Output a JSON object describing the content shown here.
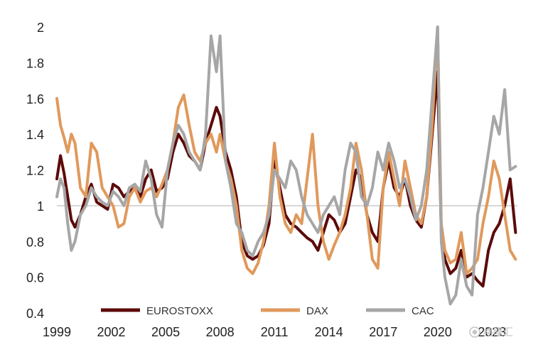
{
  "chart_data": {
    "type": "line",
    "title": "",
    "xlabel": "",
    "ylabel": "",
    "xlim": [
      1999,
      2024.4
    ],
    "ylim": [
      0.4,
      2.0
    ],
    "reference_line": 1.0,
    "x_ticks": [
      "1999",
      "2002",
      "2005",
      "2008",
      "2011",
      "2014",
      "2017",
      "2020",
      "2023"
    ],
    "y_ticks": [
      "0.4",
      "0.6",
      "0.8",
      "1",
      "1.2",
      "1.4",
      "1.6",
      "1.8",
      "2"
    ],
    "legend_position": "bottom",
    "series": [
      {
        "name": "EUROSTOXX",
        "color": "#5c0a0a",
        "x": [
          1999.0,
          1999.2,
          1999.4,
          1999.6,
          1999.8,
          2000.0,
          2000.3,
          2000.6,
          2000.9,
          2001.2,
          2001.5,
          2001.8,
          2002.1,
          2002.4,
          2002.7,
          2003.0,
          2003.3,
          2003.6,
          2003.9,
          2004.2,
          2004.5,
          2004.8,
          2005.1,
          2005.4,
          2005.7,
          2006.0,
          2006.3,
          2006.6,
          2006.9,
          2007.2,
          2007.5,
          2007.8,
          2008.0,
          2008.3,
          2008.6,
          2008.9,
          2009.2,
          2009.5,
          2009.8,
          2010.1,
          2010.4,
          2010.7,
          2011.0,
          2011.3,
          2011.6,
          2011.9,
          2012.2,
          2012.5,
          2012.8,
          2013.1,
          2013.4,
          2013.7,
          2014.0,
          2014.3,
          2014.6,
          2014.9,
          2015.2,
          2015.5,
          2015.8,
          2016.1,
          2016.4,
          2016.7,
          2017.0,
          2017.3,
          2017.6,
          2017.9,
          2018.2,
          2018.5,
          2018.8,
          2019.1,
          2019.4,
          2019.7,
          2020.0,
          2020.2,
          2020.4,
          2020.7,
          2021.0,
          2021.3,
          2021.6,
          2021.9,
          2022.2,
          2022.5,
          2022.8,
          2023.1,
          2023.4,
          2023.7,
          2024.0,
          2024.3
        ],
        "values": [
          1.15,
          1.28,
          1.18,
          1.05,
          0.92,
          0.88,
          0.95,
          1.05,
          1.12,
          1.02,
          1.0,
          0.98,
          1.12,
          1.1,
          1.05,
          1.08,
          1.1,
          1.05,
          1.15,
          1.2,
          1.08,
          1.1,
          1.15,
          1.3,
          1.4,
          1.35,
          1.28,
          1.25,
          1.2,
          1.35,
          1.45,
          1.55,
          1.5,
          1.3,
          1.2,
          1.05,
          0.8,
          0.72,
          0.7,
          0.72,
          0.78,
          0.9,
          1.25,
          1.1,
          0.95,
          0.9,
          0.88,
          0.85,
          0.82,
          0.8,
          0.75,
          0.85,
          0.95,
          0.92,
          0.85,
          0.9,
          1.05,
          1.2,
          1.15,
          0.95,
          0.85,
          0.8,
          1.1,
          1.25,
          1.1,
          1.05,
          1.15,
          1.0,
          0.92,
          0.88,
          1.05,
          1.4,
          1.75,
          0.85,
          0.7,
          0.62,
          0.65,
          0.75,
          0.6,
          0.62,
          0.58,
          0.55,
          0.75,
          0.85,
          0.9,
          1.0,
          1.15,
          0.85
        ]
      },
      {
        "name": "DAX",
        "color": "#e0995c",
        "x": [
          1999.0,
          1999.2,
          1999.4,
          1999.6,
          1999.8,
          2000.0,
          2000.3,
          2000.6,
          2000.9,
          2001.2,
          2001.5,
          2001.8,
          2002.1,
          2002.4,
          2002.7,
          2003.0,
          2003.3,
          2003.6,
          2003.9,
          2004.2,
          2004.5,
          2004.8,
          2005.1,
          2005.4,
          2005.7,
          2006.0,
          2006.3,
          2006.6,
          2006.9,
          2007.2,
          2007.5,
          2007.8,
          2008.0,
          2008.3,
          2008.6,
          2008.9,
          2009.2,
          2009.5,
          2009.8,
          2010.1,
          2010.4,
          2010.7,
          2011.0,
          2011.3,
          2011.6,
          2011.9,
          2012.2,
          2012.5,
          2012.8,
          2013.1,
          2013.4,
          2013.7,
          2014.0,
          2014.3,
          2014.6,
          2014.9,
          2015.2,
          2015.5,
          2015.8,
          2016.1,
          2016.4,
          2016.7,
          2017.0,
          2017.3,
          2017.6,
          2017.9,
          2018.2,
          2018.5,
          2018.8,
          2019.1,
          2019.4,
          2019.7,
          2020.0,
          2020.2,
          2020.4,
          2020.7,
          2021.0,
          2021.3,
          2021.6,
          2021.9,
          2022.2,
          2022.5,
          2022.8,
          2023.1,
          2023.4,
          2023.7,
          2024.0,
          2024.3
        ],
        "values": [
          1.6,
          1.45,
          1.38,
          1.3,
          1.4,
          1.35,
          1.1,
          1.05,
          1.35,
          1.3,
          1.1,
          1.05,
          1.0,
          0.88,
          0.9,
          1.05,
          1.1,
          1.02,
          1.08,
          1.1,
          1.05,
          1.12,
          1.2,
          1.35,
          1.55,
          1.62,
          1.45,
          1.3,
          1.25,
          1.35,
          1.4,
          1.3,
          1.4,
          1.25,
          1.15,
          1.0,
          0.75,
          0.65,
          0.62,
          0.68,
          0.8,
          1.0,
          1.35,
          1.05,
          0.9,
          0.85,
          0.95,
          0.9,
          1.15,
          1.4,
          1.0,
          0.8,
          0.7,
          0.78,
          0.85,
          0.95,
          1.1,
          1.35,
          1.2,
          0.95,
          0.7,
          0.65,
          1.1,
          1.3,
          1.15,
          1.0,
          1.25,
          1.1,
          0.95,
          0.9,
          1.05,
          1.45,
          2.0,
          0.9,
          0.75,
          0.68,
          0.7,
          0.85,
          0.62,
          0.65,
          0.7,
          0.9,
          1.05,
          1.25,
          1.15,
          0.95,
          0.75,
          0.7
        ]
      },
      {
        "name": "CAC",
        "color": "#a6a6a6",
        "x": [
          1999.0,
          1999.2,
          1999.4,
          1999.6,
          1999.8,
          2000.0,
          2000.3,
          2000.6,
          2000.9,
          2001.2,
          2001.5,
          2001.8,
          2002.1,
          2002.4,
          2002.7,
          2003.0,
          2003.3,
          2003.6,
          2003.9,
          2004.2,
          2004.5,
          2004.8,
          2005.1,
          2005.4,
          2005.7,
          2006.0,
          2006.3,
          2006.6,
          2006.9,
          2007.2,
          2007.5,
          2007.8,
          2008.0,
          2008.3,
          2008.6,
          2008.9,
          2009.2,
          2009.5,
          2009.8,
          2010.1,
          2010.4,
          2010.7,
          2011.0,
          2011.3,
          2011.6,
          2011.9,
          2012.2,
          2012.5,
          2012.8,
          2013.1,
          2013.4,
          2013.7,
          2014.0,
          2014.3,
          2014.6,
          2014.9,
          2015.2,
          2015.5,
          2015.8,
          2016.1,
          2016.4,
          2016.7,
          2017.0,
          2017.3,
          2017.6,
          2017.9,
          2018.2,
          2018.5,
          2018.8,
          2019.1,
          2019.4,
          2019.7,
          2020.0,
          2020.2,
          2020.4,
          2020.7,
          2021.0,
          2021.3,
          2021.6,
          2021.9,
          2022.2,
          2022.5,
          2022.8,
          2023.1,
          2023.4,
          2023.7,
          2024.0,
          2024.3
        ],
        "values": [
          1.05,
          1.15,
          1.1,
          0.9,
          0.75,
          0.8,
          0.95,
          1.0,
          1.1,
          1.05,
          1.02,
          1.0,
          1.08,
          1.05,
          1.0,
          1.1,
          1.12,
          1.08,
          1.25,
          1.15,
          0.95,
          0.88,
          1.2,
          1.35,
          1.45,
          1.4,
          1.3,
          1.25,
          1.2,
          1.4,
          1.95,
          1.75,
          1.95,
          1.25,
          1.1,
          0.9,
          0.85,
          0.75,
          0.72,
          0.8,
          0.85,
          0.95,
          1.2,
          1.15,
          1.1,
          1.25,
          1.2,
          1.05,
          0.95,
          0.9,
          0.85,
          0.95,
          1.0,
          1.05,
          0.95,
          1.2,
          1.35,
          1.3,
          1.05,
          1.0,
          1.1,
          1.3,
          1.2,
          1.35,
          1.25,
          1.1,
          1.15,
          1.05,
          0.92,
          1.0,
          1.2,
          1.6,
          2.0,
          0.8,
          0.6,
          0.45,
          0.5,
          0.7,
          0.55,
          0.5,
          0.95,
          1.1,
          1.3,
          1.5,
          1.4,
          1.65,
          1.2,
          1.22
        ]
      }
    ]
  },
  "watermark": "格隆汇"
}
